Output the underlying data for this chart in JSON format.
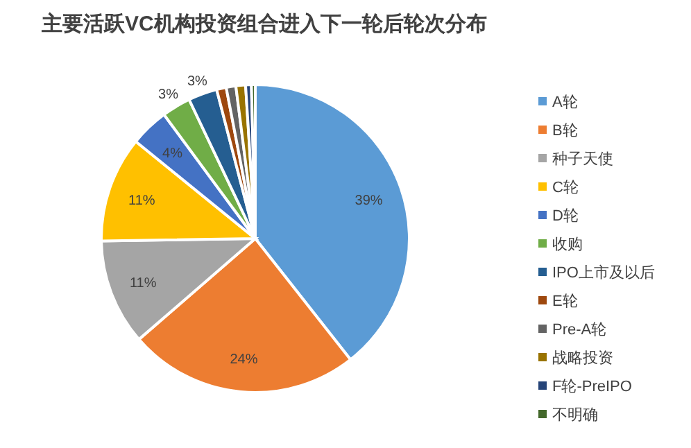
{
  "chart_data": {
    "type": "pie",
    "title": "主要活跃VC机构投资组合进入下一轮后轮次分布",
    "categories": [
      "A轮",
      "B轮",
      "种子天使",
      "C轮",
      "D轮",
      "收购",
      "IPO上市及以后",
      "E轮",
      "Pre-A轮",
      "战略投资",
      "F轮-PreIPO",
      "不明确"
    ],
    "values": [
      39,
      24,
      11,
      11,
      4,
      3,
      3,
      1,
      1,
      1,
      0.6,
      0.4
    ],
    "value_labels": [
      "39%",
      "24%",
      "11%",
      "11%",
      "4%",
      "3%",
      "3%",
      null,
      null,
      null,
      null,
      null
    ],
    "colors": [
      "#5b9bd5",
      "#ed7d31",
      "#a5a5a5",
      "#ffc000",
      "#4472c4",
      "#70ad47",
      "#255e91",
      "#9e480e",
      "#636363",
      "#997300",
      "#264478",
      "#43682b"
    ],
    "legend": "right"
  }
}
